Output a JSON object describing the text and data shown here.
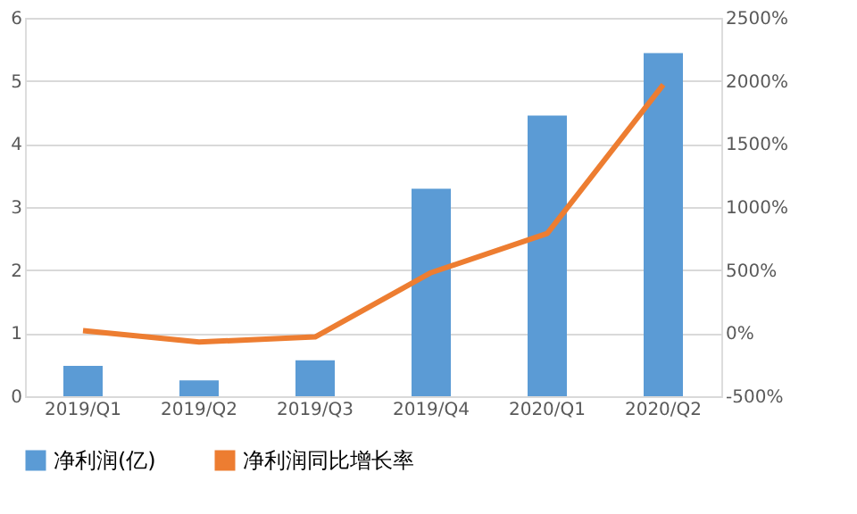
{
  "chart_data": {
    "type": "bar",
    "categories": [
      "2019/Q1",
      "2019/Q2",
      "2019/Q3",
      "2019/Q4",
      "2020/Q1",
      "2020/Q2"
    ],
    "series": [
      {
        "name": "净利润(亿)",
        "color": "#5b9bd5",
        "values": [
          0.48,
          0.25,
          0.57,
          3.29,
          4.45,
          5.44
        ]
      },
      {
        "name": "净利润同比增长率",
        "type": "line",
        "axis": "y2",
        "color": "#ed7d31",
        "values": [
          20,
          -70,
          -30,
          480,
          790,
          1970
        ]
      }
    ],
    "ylim": [
      0,
      6
    ],
    "yticks": [
      0,
      1,
      2,
      3,
      4,
      5,
      6
    ],
    "y2lim": [
      -500,
      2500
    ],
    "y2ticks": [
      {
        "value": -500,
        "label": "-500%"
      },
      {
        "value": 0,
        "label": "0%"
      },
      {
        "value": 500,
        "label": "500%"
      },
      {
        "value": 1000,
        "label": "1000%"
      },
      {
        "value": 1500,
        "label": "1500%"
      },
      {
        "value": 2000,
        "label": "2000%"
      },
      {
        "value": 2500,
        "label": "2500%"
      }
    ],
    "grid": "y",
    "legend": "bottom"
  }
}
